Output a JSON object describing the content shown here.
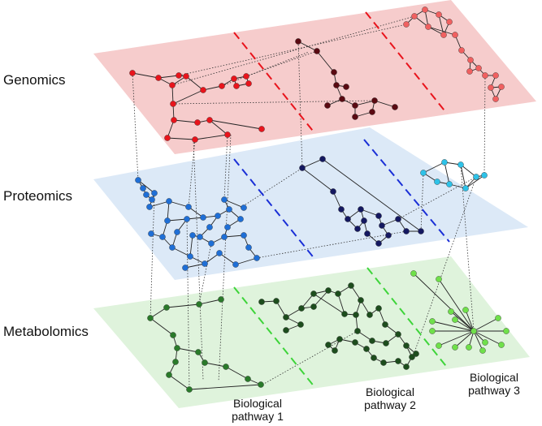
{
  "layers": [
    {
      "id": "genomics",
      "label": "Genomics",
      "fill": "#f6cccc",
      "divider": "#e8141c"
    },
    {
      "id": "proteomics",
      "label": "Proteomics",
      "fill": "#dce9f7",
      "divider": "#1a2fd6"
    },
    {
      "id": "metabolomics",
      "label": "Metabolomics",
      "fill": "#dff3dc",
      "divider": "#3ed43a"
    }
  ],
  "pathways": [
    {
      "label": "Biological\npathway 1"
    },
    {
      "label": "Biological\npathway 2"
    },
    {
      "label": "Biological\npathway 3"
    }
  ],
  "node_colors": {
    "genomics": [
      "#e8141c",
      "#5a0a12",
      "#f06060"
    ],
    "proteomics": [
      "#1f6fd6",
      "#141860",
      "#2ec2e8"
    ],
    "metabolomics": [
      "#2a7a2a",
      "#1d4d1d",
      "#6fe04a"
    ]
  },
  "edge_color": "#222222"
}
